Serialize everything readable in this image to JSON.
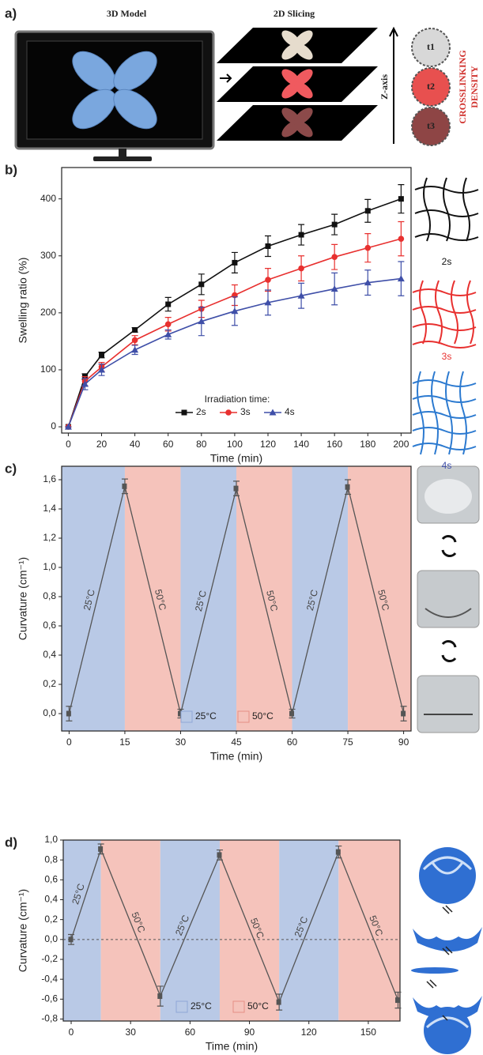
{
  "panel_a": {
    "label": "a)",
    "model_title": "3D Model",
    "slicing_title": "2D Slicing",
    "z_axis": "Z-axis",
    "density_line1": "CROSSLINKING",
    "density_line2": "DENSITY",
    "times": [
      "t1",
      "t2",
      "t3"
    ]
  },
  "chart_data": [
    {
      "type": "line",
      "panel": "b)",
      "y_label": "Swelling ratio (%)",
      "x_label": "Time (min)",
      "x": [
        0,
        10,
        20,
        40,
        60,
        80,
        100,
        120,
        140,
        160,
        180,
        200
      ],
      "xlim": [
        -4,
        206
      ],
      "ylim": [
        -11,
        455
      ],
      "xticks": [
        0,
        20,
        40,
        60,
        80,
        100,
        120,
        140,
        160,
        180,
        200
      ],
      "yticks": [
        0,
        100,
        200,
        300,
        400
      ],
      "legend_title": "Irradiation time:",
      "series": [
        {
          "name": "2s",
          "color": "#111111",
          "marker": "square",
          "values": [
            0,
            88,
            126,
            170,
            215,
            250,
            288,
            317,
            337,
            355,
            379,
            400
          ],
          "errors": [
            0,
            5,
            5,
            4,
            12,
            18,
            18,
            18,
            18,
            18,
            20,
            25
          ]
        },
        {
          "name": "3s",
          "color": "#e8302f",
          "marker": "circle",
          "values": [
            0,
            80,
            105,
            152,
            180,
            207,
            231,
            258,
            278,
            298,
            314,
            330
          ],
          "errors": [
            0,
            8,
            8,
            8,
            12,
            15,
            18,
            20,
            22,
            22,
            25,
            30
          ]
        },
        {
          "name": "4s",
          "color": "#3f4fa8",
          "marker": "triangle",
          "values": [
            0,
            75,
            100,
            135,
            162,
            185,
            203,
            218,
            230,
            242,
            253,
            260
          ],
          "errors": [
            0,
            10,
            10,
            8,
            8,
            25,
            25,
            22,
            22,
            28,
            22,
            30
          ]
        }
      ]
    },
    {
      "type": "cycle",
      "panel": "c)",
      "y_label": "Curvature (cm⁻¹)",
      "x_label": "Time (min)",
      "x": [
        0,
        15,
        30,
        45,
        60,
        75,
        90
      ],
      "values": [
        0,
        1.555,
        0,
        1.54,
        0,
        1.55,
        0
      ],
      "errors": [
        0.05,
        0.05,
        0.03,
        0.05,
        0.03,
        0.05,
        0.05
      ],
      "color": "#555555",
      "xlim": [
        -2,
        92
      ],
      "ylim": [
        -0.119,
        1.692
      ],
      "xticks": [
        0,
        15,
        30,
        45,
        60,
        75,
        90
      ],
      "yticks": [
        {
          "value": 0,
          "label": "0,0"
        },
        {
          "value": 0.2,
          "label": "0,2"
        },
        {
          "value": 0.4,
          "label": "0,4"
        },
        {
          "value": 0.6,
          "label": "0,6"
        },
        {
          "value": 0.8,
          "label": "0,8"
        },
        {
          "value": 1,
          "label": "1,0"
        },
        {
          "value": 1.2,
          "label": "1,2"
        },
        {
          "value": 1.4,
          "label": "1,4"
        },
        {
          "value": 1.6,
          "label": "1,6"
        }
      ],
      "legend": [
        {
          "name": "25°C",
          "color": "#b9c9e6"
        },
        {
          "name": "50°C",
          "color": "#f5c3bb"
        }
      ]
    },
    {
      "type": "cycle",
      "panel": "d)",
      "y_label": "Curvature (cm⁻¹)",
      "x_label": "Time (min)",
      "x": [
        0,
        15,
        45,
        75,
        105,
        135,
        165
      ],
      "values": [
        0,
        0.91,
        -0.57,
        0.85,
        -0.63,
        0.88,
        -0.61
      ],
      "errors": [
        0.05,
        0.05,
        0.1,
        0.05,
        0.08,
        0.06,
        0.08
      ],
      "color": "#555555",
      "xlim": [
        -4,
        166
      ],
      "ylim": [
        -0.82,
        1.0
      ],
      "hline": 0,
      "xticks": [
        0,
        30,
        60,
        90,
        120,
        150
      ],
      "yticks": [
        {
          "value": -0.8,
          "label": "-0,8"
        },
        {
          "value": -0.6,
          "label": "-0,6"
        },
        {
          "value": -0.4,
          "label": "-0,4"
        },
        {
          "value": -0.2,
          "label": "-0,2"
        },
        {
          "value": 0,
          "label": "0,0"
        },
        {
          "value": 0.2,
          "label": "0,2"
        },
        {
          "value": 0.4,
          "label": "0,4"
        },
        {
          "value": 0.6,
          "label": "0,6"
        },
        {
          "value": 0.8,
          "label": "0,8"
        },
        {
          "value": 1,
          "label": "1,0"
        }
      ],
      "legend": [
        {
          "name": "25°C",
          "color": "#b9c9e6"
        },
        {
          "name": "50°C",
          "color": "#f5c3bb"
        }
      ]
    }
  ]
}
